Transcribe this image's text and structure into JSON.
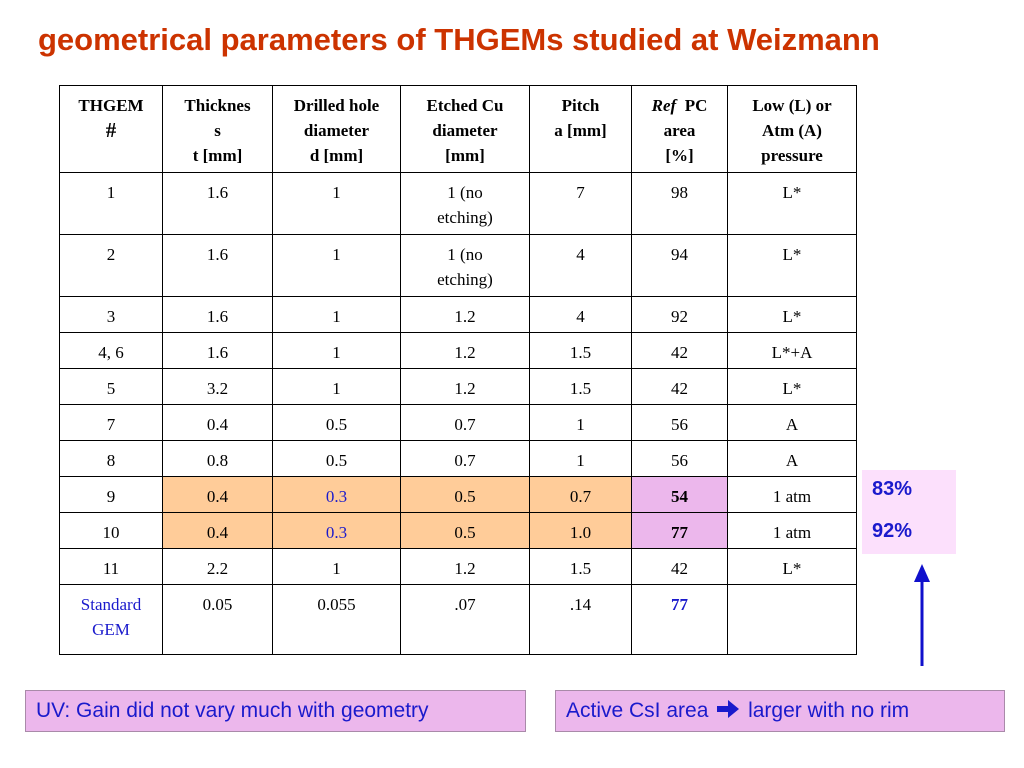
{
  "title": "geometrical parameters of THGEMs studied at Weizmann",
  "table": {
    "headers": [
      [
        "THGEM",
        "#"
      ],
      [
        "Thicknes",
        "s",
        "t [mm]"
      ],
      [
        "Drilled hole",
        "diameter",
        "d  [mm]"
      ],
      [
        "Etched Cu",
        "diameter",
        "[mm]"
      ],
      [
        "Pitch",
        "a [mm]"
      ],
      [
        "Ref",
        "PC",
        "area",
        "[%]"
      ],
      [
        "Low (L) or",
        "Atm (A)",
        "pressure"
      ]
    ],
    "rows": [
      [
        "1",
        "1.6",
        "1",
        [
          "1 (no",
          "etching)"
        ],
        "7",
        "98",
        "L*"
      ],
      [
        "2",
        "1.6",
        "1",
        [
          "1 (no",
          "etching)"
        ],
        "4",
        "94",
        "L*"
      ],
      [
        "3",
        "1.6",
        "1",
        "1.2",
        "4",
        "92",
        "L*"
      ],
      [
        "4, 6",
        "1.6",
        "1",
        "1.2",
        "1.5",
        "42",
        "L*+A"
      ],
      [
        "5",
        "3.2",
        "1",
        "1.2",
        "1.5",
        "42",
        "L*"
      ],
      [
        "7",
        "0.4",
        "0.5",
        "0.7",
        "1",
        "56",
        "A"
      ],
      [
        "8",
        "0.8",
        "0.5",
        "0.7",
        "1",
        "56",
        "A"
      ],
      [
        "9",
        "0.4",
        "0.3",
        "0.5",
        "0.7",
        "54",
        "1 atm"
      ],
      [
        "10",
        "0.4",
        "0.3",
        "0.5",
        "1.0",
        "77",
        "1 atm"
      ],
      [
        "11",
        "2.2",
        "1",
        "1.2",
        "1.5",
        "42",
        "L*"
      ],
      [
        [
          "Standard",
          "GEM"
        ],
        "0.05",
        "0.055",
        ".07",
        ".14",
        "77",
        ""
      ]
    ]
  },
  "side_values": [
    "83%",
    "92%"
  ],
  "colors": {
    "title": "#cc3300",
    "highlight_orange": "#ffcc99",
    "highlight_violet": "#ecb7ec",
    "text_blue": "#1a1acc",
    "arrow": "#1010cc"
  },
  "notes": {
    "left": "UV: Gain did not vary much with geometry",
    "right_pre": "Active CsI area",
    "right_arrow_icon": "right-arrow-icon",
    "right_post": "larger with no rim"
  }
}
